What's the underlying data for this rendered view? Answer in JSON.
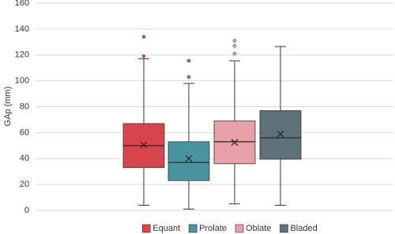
{
  "chart_data": {
    "type": "box",
    "y_label": "GAp (mm)",
    "ylim": [
      0,
      160
    ],
    "yticks": [
      0,
      20,
      40,
      60,
      80,
      100,
      120,
      140,
      160
    ],
    "grid": true,
    "legend": "bottom",
    "series": [
      {
        "name": "Equant",
        "color": "#d9454d",
        "min": 4,
        "q1": 33,
        "median": 50,
        "q3": 67,
        "max": 117,
        "mean": 50.5,
        "outliers": [
          134,
          119
        ]
      },
      {
        "name": "Prolate",
        "color": "#4a94a0",
        "min": 1,
        "q1": 23,
        "median": 37,
        "q3": 53,
        "max": 98,
        "mean": 40,
        "outliers": [
          115.5,
          103
        ]
      },
      {
        "name": "Oblate",
        "color": "#e8a0a8",
        "min": 5,
        "q1": 36,
        "median": 53,
        "q3": 69,
        "max": 115.5,
        "mean": 52.5,
        "outliers": [
          131,
          127,
          121
        ]
      },
      {
        "name": "Bladed",
        "color": "#5e7178",
        "min": 4,
        "q1": 39.5,
        "median": 56,
        "q3": 77,
        "max": 126.5,
        "mean": 59,
        "outliers": []
      }
    ]
  }
}
